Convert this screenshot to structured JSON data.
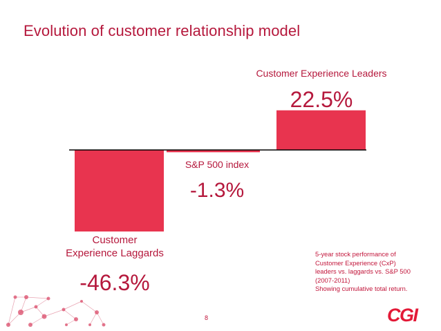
{
  "slide": {
    "title": "Evolution of customer relationship model",
    "page_number": "8",
    "logo_text": "CGI",
    "note_lines": [
      "5-year stock performance of",
      "Customer Experience (CxP)",
      "leaders vs. laggards vs. S&P 500",
      "(2007-2011)",
      "Showing cumulative total return."
    ]
  },
  "colors": {
    "bar": "#e8344f",
    "accent": "#b5183c",
    "baseline": "#000000"
  },
  "chart_data": {
    "type": "bar",
    "title": "",
    "xlabel": "",
    "ylabel": "",
    "categories": [
      "Customer Experience Laggards",
      "S&P 500 index",
      "Customer Experience Leaders"
    ],
    "category_label_lines": [
      [
        "Customer",
        "Experience Laggards"
      ],
      [
        "S&P 500 index"
      ],
      [
        "Customer Experience Leaders"
      ]
    ],
    "values": [
      -46.3,
      -1.3,
      22.5
    ],
    "value_labels": [
      "-46.3%",
      "-1.3%",
      "22.5%"
    ],
    "ylim": [
      -50,
      25
    ],
    "grid": false
  }
}
